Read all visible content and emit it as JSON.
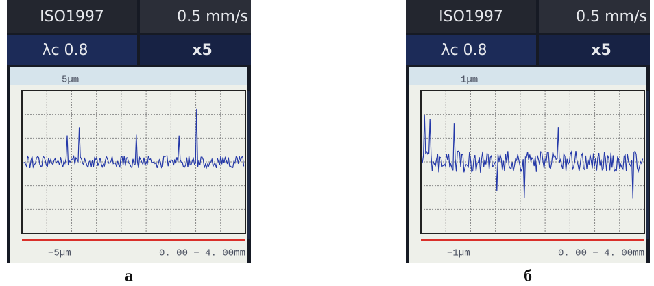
{
  "panels": [
    {
      "header": {
        "standard": "ISO1997",
        "speed": "0.5 mm/s",
        "cutoff": "λc 0.8",
        "magnification": "x5"
      },
      "range_top": "5µm",
      "range_bottom": "−5µm",
      "length": "0. 00 − 4. 00mm",
      "caption": "а"
    },
    {
      "header": {
        "standard": "ISO1997",
        "speed": "0.5 mm/s",
        "cutoff": "λc 0.8",
        "magnification": "x5"
      },
      "range_top": "1µm",
      "range_bottom": "−1µm",
      "length": "0. 00 − 4. 00mm",
      "caption": "б"
    }
  ]
}
